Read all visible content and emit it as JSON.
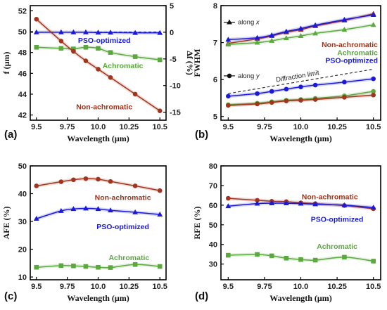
{
  "chart_data": [
    {
      "id": "a",
      "type": "line",
      "panel_label": "(a)",
      "xlabel": "Wavelength (μm)",
      "ylabel": "f (μm)",
      "y2label": "Δf (%)",
      "xlim": [
        9.45,
        10.55
      ],
      "ylim": [
        41.5,
        52.5
      ],
      "y2lim": [
        -16.5,
        5
      ],
      "xticks": [
        9.5,
        9.75,
        10.0,
        10.25,
        10.5
      ],
      "xtick_labels": [
        "9.5",
        "9.75",
        "10.0",
        "10.25",
        "10.5"
      ],
      "yticks": [
        42,
        44,
        46,
        48,
        50,
        52
      ],
      "y2ticks": [
        -15,
        -10,
        -5,
        0,
        5
      ],
      "x": [
        9.5,
        9.7,
        9.8,
        9.9,
        10.0,
        10.1,
        10.3,
        10.5
      ],
      "series": [
        {
          "name": "PSO-optimized",
          "color": "#1a1ad6",
          "marker": "triangle",
          "axis": "y2",
          "values": [
            0.0,
            0.0,
            0.0,
            0.0,
            -0.05,
            -0.05,
            -0.1,
            -0.1
          ]
        },
        {
          "name": "Achromatic",
          "color": "#5aa83e",
          "marker": "square",
          "axis": "y",
          "values": [
            48.5,
            48.4,
            48.35,
            48.5,
            48.4,
            48.0,
            47.6,
            47.3
          ]
        },
        {
          "name": "Non-achromatic",
          "color": "#a0341c",
          "marker": "circle",
          "axis": "y",
          "values": [
            51.2,
            49.1,
            48.1,
            47.2,
            46.4,
            45.6,
            44.0,
            42.4
          ]
        }
      ],
      "annotations": [
        {
          "text": "PSO-optimized",
          "color": "#1a1ad6",
          "x": 10.05,
          "y": 49.2
        },
        {
          "text": "Achromatic",
          "color": "#5aa83e",
          "x": 10.2,
          "y": 46.75
        },
        {
          "text": "Non-achromatic",
          "color": "#a0341c",
          "x": 10.05,
          "y": 42.8
        }
      ],
      "zero_line_y2": 0
    },
    {
      "id": "b",
      "type": "line",
      "panel_label": "(b)",
      "xlabel": "Wavelength (μm)",
      "ylabel": "FWHM",
      "xlim": [
        9.45,
        10.55
      ],
      "ylim": [
        4.9,
        8.0
      ],
      "xticks": [
        9.5,
        9.75,
        10.0,
        10.25,
        10.5
      ],
      "xtick_labels": [
        "9.5",
        "9.75",
        "10.0",
        "10.25",
        "10.5"
      ],
      "yticks": [
        5,
        6,
        7,
        8
      ],
      "x": [
        9.5,
        9.7,
        9.8,
        9.9,
        10.0,
        10.1,
        10.3,
        10.5
      ],
      "series": [
        {
          "name": "Non-achromatic x",
          "color": "#a0341c",
          "marker": "triangle",
          "values": [
            6.98,
            7.1,
            7.18,
            7.28,
            7.35,
            7.45,
            7.6,
            7.78
          ]
        },
        {
          "name": "PSO-optimized x",
          "color": "#1a1ad6",
          "marker": "triangle",
          "values": [
            7.08,
            7.13,
            7.2,
            7.3,
            7.38,
            7.47,
            7.62,
            7.75
          ]
        },
        {
          "name": "Achromatic x",
          "color": "#5aa83e",
          "marker": "triangle",
          "values": [
            6.95,
            7.0,
            7.05,
            7.12,
            7.18,
            7.25,
            7.35,
            7.48
          ]
        },
        {
          "name": "PSO-optimized y",
          "color": "#1a1ad6",
          "marker": "circle",
          "values": [
            5.55,
            5.62,
            5.68,
            5.74,
            5.8,
            5.85,
            5.93,
            6.02
          ]
        },
        {
          "name": "Achromatic y",
          "color": "#5aa83e",
          "marker": "circle",
          "values": [
            5.32,
            5.36,
            5.4,
            5.44,
            5.46,
            5.49,
            5.56,
            5.68
          ]
        },
        {
          "name": "Non-achromatic y",
          "color": "#a0341c",
          "marker": "circle",
          "values": [
            5.3,
            5.34,
            5.38,
            5.42,
            5.44,
            5.46,
            5.52,
            5.58
          ]
        }
      ],
      "diffraction_limit": {
        "label": "Diffraction limit",
        "x": [
          9.5,
          10.5
        ],
        "y": [
          5.62,
          6.28
        ]
      },
      "legend_markers": [
        {
          "label": "along x",
          "marker": "triangle",
          "y": 7.55
        },
        {
          "label": "along y",
          "marker": "circle",
          "y": 6.1
        }
      ],
      "annotations": [
        {
          "text": "Non-achromatic",
          "color": "#a0341c",
          "y": 6.95
        },
        {
          "text": "Achromatic",
          "color": "#5aa83e",
          "y": 6.74
        },
        {
          "text": "PSO-optimized",
          "color": "#1a1ad6",
          "y": 6.53
        }
      ]
    },
    {
      "id": "c",
      "type": "line",
      "panel_label": "(c)",
      "xlabel": "Wavelength (μm)",
      "ylabel": "AFE (%)",
      "xlim": [
        9.45,
        10.55
      ],
      "ylim": [
        9,
        50
      ],
      "xticks": [
        9.5,
        9.75,
        10.0,
        10.25,
        10.5
      ],
      "xtick_labels": [
        "9.5",
        "9.75",
        "10.0",
        "10.25",
        "10.5"
      ],
      "yticks": [
        10,
        20,
        30,
        40,
        50
      ],
      "x": [
        9.5,
        9.7,
        9.8,
        9.9,
        10.0,
        10.1,
        10.3,
        10.5
      ],
      "series": [
        {
          "name": "Non-achromatic",
          "color": "#a0341c",
          "marker": "circle",
          "values": [
            42.8,
            44.3,
            45.0,
            45.4,
            45.2,
            44.4,
            42.8,
            41.1
          ]
        },
        {
          "name": "PSO-optimized",
          "color": "#1a1ad6",
          "marker": "triangle",
          "values": [
            31.0,
            33.8,
            34.5,
            34.7,
            34.5,
            34.0,
            33.3,
            32.5
          ]
        },
        {
          "name": "Achromatic",
          "color": "#5aa83e",
          "marker": "square",
          "values": [
            13.5,
            14.1,
            14.0,
            13.8,
            13.5,
            13.4,
            14.5,
            13.8
          ]
        }
      ],
      "annotations": [
        {
          "text": "Non-achromatic",
          "color": "#a0341c",
          "x": 10.2,
          "y": 38.8
        },
        {
          "text": "PSO-optimized",
          "color": "#1a1ad6",
          "x": 10.2,
          "y": 28.2
        },
        {
          "text": "Achromatic",
          "color": "#5aa83e",
          "x": 10.25,
          "y": 17.1
        }
      ]
    },
    {
      "id": "d",
      "type": "line",
      "panel_label": "(d)",
      "xlabel": "Wavelength (μm)",
      "ylabel": "RFE (%)",
      "xlim": [
        9.45,
        10.55
      ],
      "ylim": [
        22,
        80
      ],
      "xticks": [
        9.5,
        9.75,
        10.0,
        10.25,
        10.5
      ],
      "xtick_labels": [
        "9.5",
        "9.75",
        "10.0",
        "10.25",
        "10.5"
      ],
      "yticks": [
        30,
        40,
        50,
        60,
        70,
        80
      ],
      "x": [
        9.5,
        9.7,
        9.8,
        9.9,
        10.0,
        10.1,
        10.3,
        10.5
      ],
      "series": [
        {
          "name": "Non-achromatic",
          "color": "#a0341c",
          "marker": "circle",
          "values": [
            63.5,
            62.5,
            62.0,
            61.8,
            61.2,
            60.8,
            59.8,
            58.2
          ]
        },
        {
          "name": "PSO-optimized",
          "color": "#1a1ad6",
          "marker": "triangle",
          "values": [
            59.5,
            60.8,
            61.0,
            61.0,
            60.8,
            60.5,
            60.0,
            58.8
          ]
        },
        {
          "name": "Achromatic",
          "color": "#5aa83e",
          "marker": "square",
          "values": [
            34.5,
            34.9,
            34.2,
            33.0,
            32.3,
            32.0,
            33.5,
            31.5
          ]
        }
      ],
      "annotations": [
        {
          "text": "Non-achromatic",
          "color": "#a0341c",
          "x": 10.2,
          "y": 64.5
        },
        {
          "text": "PSO-optimized",
          "color": "#1a1ad6",
          "x": 10.25,
          "y": 53.0
        },
        {
          "text": "Achromatic",
          "color": "#5aa83e",
          "x": 10.25,
          "y": 39.2
        }
      ]
    }
  ]
}
